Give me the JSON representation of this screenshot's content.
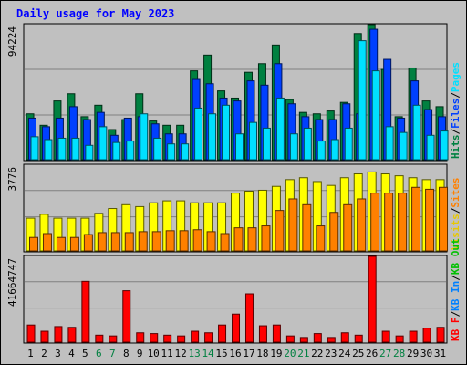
{
  "chart_data": {
    "type": "bar",
    "title": "Daily usage for May 2023",
    "categories": [
      "1",
      "2",
      "3",
      "4",
      "5",
      "6",
      "7",
      "8",
      "9",
      "10",
      "11",
      "12",
      "13",
      "14",
      "15",
      "16",
      "17",
      "18",
      "19",
      "20",
      "21",
      "22",
      "23",
      "24",
      "25",
      "26",
      "27",
      "28",
      "29",
      "30",
      "31"
    ],
    "weekend_days": [
      "6",
      "7",
      "13",
      "14",
      "20",
      "21",
      "27",
      "28"
    ],
    "colors": {
      "hits": "#008040",
      "files": "#0040ff",
      "pages": "#00e0ff",
      "visits": "#ffff00",
      "sites": "#ff8000",
      "kbf": "#ff0000",
      "kbin": "#0080ff",
      "kbout": "#00c000",
      "title": "#0000ff",
      "weekday": "#000000",
      "weekend": "#008040",
      "background": "#c0c0c0",
      "plot": "#c0c0c0"
    },
    "panels": [
      {
        "ytick": "94224",
        "ymax": 94224,
        "legend": [
          {
            "label": "Hits",
            "color": "#008040"
          },
          {
            "label": "/",
            "color": "#000000"
          },
          {
            "label": "Files",
            "color": "#0040ff"
          },
          {
            "label": "/",
            "color": "#000000"
          },
          {
            "label": "Pages",
            "color": "#00e0ff"
          }
        ],
        "series": [
          {
            "name": "Hits",
            "color": "#008040",
            "values": [
              32000,
              24000,
              41000,
              46000,
              30000,
              38000,
              21000,
              28000,
              46000,
              27000,
              24000,
              24000,
              62000,
              73000,
              48000,
              43000,
              61000,
              67000,
              80000,
              42000,
              33000,
              32000,
              34000,
              40000,
              88000,
              116000,
              63000,
              30000,
              64000,
              41000,
              37000
            ]
          },
          {
            "name": "Files",
            "color": "#0040ff",
            "values": [
              29000,
              23000,
              29000,
              37000,
              28000,
              33000,
              17000,
              29000,
              30000,
              25000,
              18000,
              18000,
              56000,
              53000,
              43000,
              41000,
              55000,
              52000,
              67000,
              39000,
              30000,
              28000,
              28000,
              39000,
              32000,
              91000,
              70000,
              29000,
              55000,
              35000,
              30000
            ]
          },
          {
            "name": "Pages",
            "color": "#00e0ff",
            "values": [
              16000,
              14000,
              15000,
              15000,
              10000,
              23000,
              12000,
              13000,
              32000,
              15000,
              11000,
              11000,
              36000,
              32000,
              38000,
              18000,
              26000,
              22000,
              43000,
              18000,
              22000,
              13000,
              14000,
              22000,
              83000,
              62000,
              23000,
              19000,
              38000,
              17000,
              20000
            ]
          }
        ]
      },
      {
        "ytick": "3776",
        "ymax": 4450,
        "legend": [
          {
            "label": "Visits",
            "color": "#e8c800"
          },
          {
            "label": "/",
            "color": "#000000"
          },
          {
            "label": "Sites",
            "color": "#ff8000"
          }
        ],
        "series": [
          {
            "name": "Visits",
            "color": "#ffff00",
            "values": [
              1700,
              1900,
              1700,
              1700,
              1700,
              1950,
              2200,
              2400,
              2300,
              2500,
              2600,
              2600,
              2500,
              2500,
              2500,
              3000,
              3100,
              3150,
              3350,
              3700,
              3800,
              3600,
              3400,
              3800,
              4000,
              4100,
              4000,
              3900,
              3800,
              3700,
              3700
            ]
          },
          {
            "name": "Sites",
            "color": "#ff8000",
            "values": [
              700,
              900,
              700,
              700,
              850,
              950,
              950,
              950,
              1000,
              1000,
              1050,
              1050,
              1100,
              1000,
              900,
              1200,
              1200,
              1300,
              2100,
              2700,
              2400,
              1300,
              2000,
              2400,
              2700,
              3000,
              3000,
              3000,
              3300,
              3200,
              3300
            ]
          }
        ]
      },
      {
        "ytick": "41664747",
        "ymax": 55000000,
        "legend": [
          {
            "label": "KB F",
            "color": "#ff0000"
          },
          {
            "label": "/",
            "color": "#000000"
          },
          {
            "label": "KB In",
            "color": "#0080ff"
          },
          {
            "label": "/",
            "color": "#000000"
          },
          {
            "label": "KB Out",
            "color": "#00c000"
          }
        ],
        "series": [
          {
            "name": "KB F",
            "color": "#ff0000",
            "values": [
              11000000,
              7000000,
              10000000,
              9500000,
              39000000,
              4500000,
              4000000,
              33000000,
              6000000,
              5500000,
              4500000,
              4000000,
              7000000,
              6000000,
              11000000,
              18000000,
              31000000,
              10500000,
              11000000,
              4000000,
              3000000,
              5500000,
              3000000,
              6000000,
              4500000,
              55000000,
              7000000,
              4000000,
              7000000,
              9000000,
              9500000
            ]
          }
        ]
      }
    ]
  }
}
